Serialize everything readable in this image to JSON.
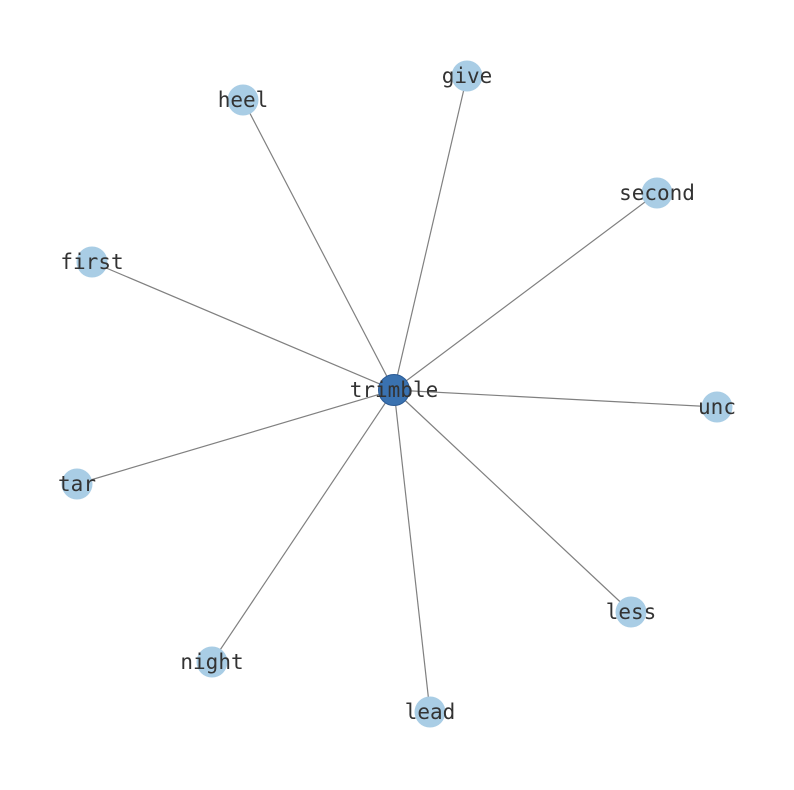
{
  "graph": {
    "center": "trimble",
    "nodes": [
      "trimble",
      "give",
      "heel",
      "second",
      "first",
      "unc",
      "tar",
      "less",
      "night",
      "lead"
    ],
    "edges": [
      [
        "trimble",
        "give"
      ],
      [
        "trimble",
        "heel"
      ],
      [
        "trimble",
        "second"
      ],
      [
        "trimble",
        "first"
      ],
      [
        "trimble",
        "unc"
      ],
      [
        "trimble",
        "tar"
      ],
      [
        "trimble",
        "less"
      ],
      [
        "trimble",
        "night"
      ],
      [
        "trimble",
        "lead"
      ]
    ],
    "colors": {
      "center_node": "#3a72b0",
      "leaf_node": "#a9cde5",
      "edge": "#808080",
      "label": "#333333"
    }
  }
}
